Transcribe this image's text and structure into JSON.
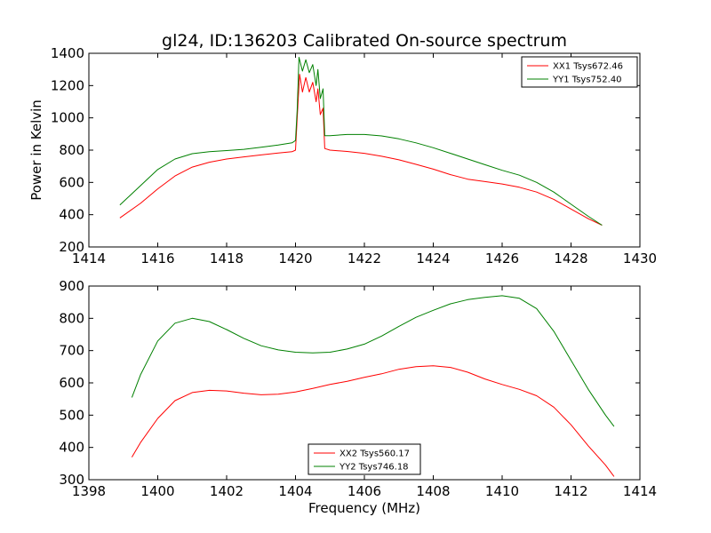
{
  "chart_data": [
    {
      "type": "line",
      "title": "gl24, ID:136203 Calibrated On-source spectrum",
      "xlabel": "",
      "ylabel": "Power in Kelvin",
      "xlim": [
        1414,
        1430
      ],
      "ylim": [
        200,
        1400
      ],
      "xticks": [
        "1414",
        "1416",
        "1418",
        "1420",
        "1422",
        "1424",
        "1426",
        "1428",
        "1430"
      ],
      "yticks": [
        "200",
        "400",
        "600",
        "800",
        "1000",
        "1200",
        "1400"
      ],
      "legend_position": "top-right",
      "grid": false,
      "series": [
        {
          "name": "XX1 Tsys672.46",
          "color": "#ff0000",
          "x": [
            1414.9,
            1415.5,
            1416.0,
            1416.5,
            1417.0,
            1417.5,
            1418.0,
            1418.5,
            1419.0,
            1419.5,
            1419.9,
            1420.0,
            1420.05,
            1420.12,
            1420.2,
            1420.3,
            1420.4,
            1420.5,
            1420.6,
            1420.65,
            1420.72,
            1420.8,
            1420.85,
            1421.0,
            1421.5,
            1422.0,
            1422.5,
            1423.0,
            1423.5,
            1424.0,
            1424.5,
            1425.0,
            1425.5,
            1426.0,
            1426.5,
            1427.0,
            1427.5,
            1428.0,
            1428.5,
            1428.9
          ],
          "values": [
            380,
            470,
            560,
            640,
            695,
            725,
            745,
            758,
            770,
            782,
            790,
            800,
            1000,
            1270,
            1160,
            1250,
            1160,
            1220,
            1100,
            1180,
            1020,
            1060,
            810,
            800,
            792,
            780,
            762,
            740,
            712,
            682,
            648,
            620,
            605,
            590,
            570,
            540,
            495,
            435,
            375,
            335
          ]
        },
        {
          "name": "YY1 Tsys752.40",
          "color": "#008000",
          "x": [
            1414.9,
            1415.5,
            1416.0,
            1416.5,
            1417.0,
            1417.5,
            1418.0,
            1418.5,
            1419.0,
            1419.5,
            1419.9,
            1420.0,
            1420.05,
            1420.1,
            1420.2,
            1420.3,
            1420.4,
            1420.5,
            1420.6,
            1420.65,
            1420.72,
            1420.8,
            1420.85,
            1421.0,
            1421.5,
            1422.0,
            1422.5,
            1423.0,
            1423.5,
            1424.0,
            1424.5,
            1425.0,
            1425.5,
            1426.0,
            1426.5,
            1427.0,
            1427.5,
            1428.0,
            1428.5,
            1428.9
          ],
          "values": [
            460,
            580,
            680,
            745,
            778,
            790,
            797,
            805,
            818,
            832,
            845,
            860,
            1050,
            1375,
            1290,
            1360,
            1280,
            1330,
            1200,
            1300,
            1120,
            1180,
            890,
            890,
            897,
            897,
            888,
            870,
            845,
            815,
            780,
            745,
            710,
            675,
            645,
            600,
            540,
            465,
            390,
            335
          ]
        }
      ]
    },
    {
      "type": "line",
      "title": "",
      "xlabel": "Frequency (MHz)",
      "ylabel": "",
      "xlim": [
        1398,
        1414
      ],
      "ylim": [
        300,
        900
      ],
      "xticks": [
        "1398",
        "1400",
        "1402",
        "1404",
        "1406",
        "1408",
        "1410",
        "1412",
        "1414"
      ],
      "yticks": [
        "300",
        "400",
        "500",
        "600",
        "700",
        "800",
        "900"
      ],
      "legend_position": "bottom-center",
      "grid": false,
      "series": [
        {
          "name": "XX2 Tsys560.17",
          "color": "#ff0000",
          "x": [
            1399.25,
            1399.5,
            1400.0,
            1400.5,
            1401.0,
            1401.5,
            1402.0,
            1402.5,
            1403.0,
            1403.5,
            1404.0,
            1404.5,
            1405.0,
            1405.5,
            1406.0,
            1406.5,
            1407.0,
            1407.5,
            1408.0,
            1408.5,
            1409.0,
            1409.5,
            1410.0,
            1410.5,
            1411.0,
            1411.5,
            1412.0,
            1412.5,
            1413.0,
            1413.25
          ],
          "values": [
            370,
            415,
            490,
            545,
            570,
            577,
            575,
            568,
            563,
            565,
            572,
            583,
            595,
            605,
            617,
            628,
            642,
            650,
            653,
            648,
            633,
            612,
            595,
            580,
            560,
            525,
            470,
            405,
            345,
            310
          ]
        },
        {
          "name": "YY2 Tsys746.18",
          "color": "#008000",
          "x": [
            1399.25,
            1399.5,
            1400.0,
            1400.5,
            1401.0,
            1401.5,
            1402.0,
            1402.5,
            1403.0,
            1403.5,
            1404.0,
            1404.5,
            1405.0,
            1405.5,
            1406.0,
            1406.5,
            1407.0,
            1407.5,
            1408.0,
            1408.5,
            1409.0,
            1409.5,
            1410.0,
            1410.5,
            1411.0,
            1411.5,
            1412.0,
            1412.5,
            1413.0,
            1413.25
          ],
          "values": [
            555,
            625,
            730,
            785,
            800,
            790,
            765,
            738,
            715,
            702,
            695,
            693,
            695,
            705,
            720,
            745,
            775,
            803,
            825,
            845,
            858,
            865,
            870,
            862,
            830,
            760,
            670,
            580,
            500,
            465
          ]
        }
      ]
    }
  ]
}
